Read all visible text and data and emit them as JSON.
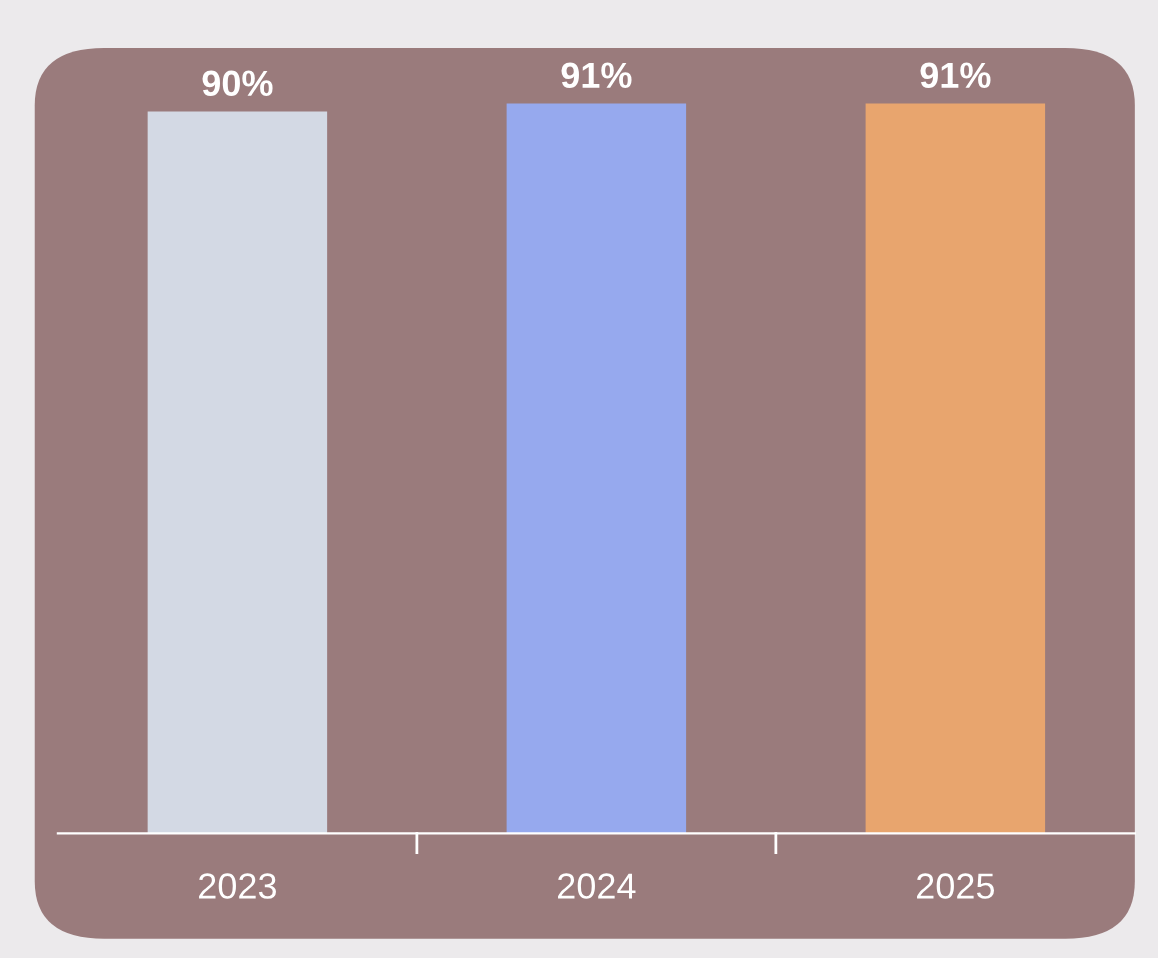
{
  "chart_data": {
    "type": "bar",
    "categories": [
      "2023",
      "2024",
      "2025"
    ],
    "values": [
      90,
      91,
      91
    ],
    "colors": [
      "#d3d9e4",
      "#96a9ee",
      "#e8a56e"
    ],
    "value_labels": [
      "90%",
      "91%",
      "91%"
    ],
    "grid": false,
    "legend": false
  }
}
